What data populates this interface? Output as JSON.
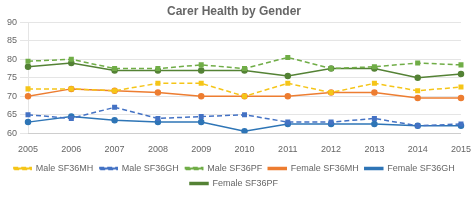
{
  "chart_data": {
    "type": "line",
    "title": "Carer Health by Gender",
    "categories": [
      "2005",
      "2006",
      "2007",
      "2008",
      "2009",
      "2010",
      "2011",
      "2012",
      "2013",
      "2014",
      "2015"
    ],
    "series": [
      {
        "name": "Male SF36MH",
        "color": "#f5c518",
        "line_style": "dashed",
        "marker": "square",
        "values": [
          72.0,
          72.0,
          71.5,
          73.5,
          73.5,
          70.0,
          73.5,
          71.0,
          73.5,
          71.5,
          72.5
        ]
      },
      {
        "name": "Male SF36GH",
        "color": "#4472c4",
        "line_style": "dashed",
        "marker": "square",
        "values": [
          65.0,
          64.0,
          67.0,
          64.0,
          64.5,
          65.0,
          63.0,
          63.0,
          64.0,
          62.0,
          62.5
        ]
      },
      {
        "name": "Male SF36PF",
        "color": "#70ad47",
        "line_style": "dashed",
        "marker": "square",
        "values": [
          79.5,
          80.0,
          77.5,
          77.5,
          78.5,
          77.5,
          80.5,
          77.5,
          78.0,
          79.0,
          78.5
        ]
      },
      {
        "name": "Female SF36MH",
        "color": "#ed7d31",
        "line_style": "solid",
        "marker": "circle",
        "values": [
          70.0,
          72.0,
          71.5,
          71.0,
          70.0,
          70.0,
          70.0,
          71.0,
          71.0,
          69.5,
          69.5
        ]
      },
      {
        "name": "Female SF36GH",
        "color": "#2e75b6",
        "line_style": "solid",
        "marker": "circle",
        "values": [
          63.0,
          64.5,
          63.5,
          63.0,
          63.0,
          60.5,
          62.5,
          62.5,
          62.5,
          62.0,
          62.0
        ]
      },
      {
        "name": "Female SF36PF",
        "color": "#548235",
        "line_style": "solid",
        "marker": "circle",
        "values": [
          78.0,
          79.0,
          77.0,
          77.0,
          77.0,
          77.0,
          75.5,
          77.5,
          77.5,
          75.0,
          76.0
        ]
      }
    ],
    "ylim": [
      60.0,
      90.0
    ],
    "yticks": [
      60.0,
      65.0,
      70.0,
      75.0,
      80.0,
      85.0,
      90.0
    ],
    "grid": "y",
    "legend": "bottom"
  }
}
